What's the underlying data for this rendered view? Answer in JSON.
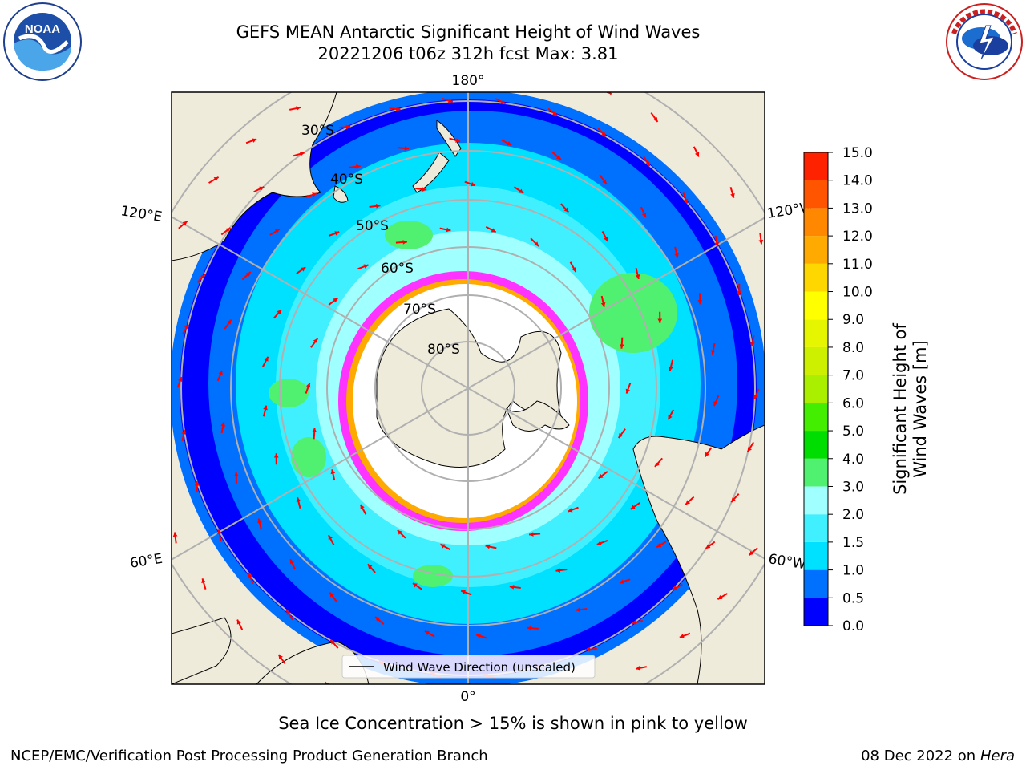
{
  "header": {
    "title_line1": "GEFS MEAN Antarctic Significant Height of Wind Waves",
    "title_line2": "20221206 t06z 312h fcst   Max: 3.81"
  },
  "map": {
    "projection": "south polar stereographic",
    "longitude_labels": {
      "top": "180°",
      "bottom": "0°",
      "upper_left": "120°E",
      "upper_right": "120°W",
      "lower_left": "60°E",
      "lower_right": "60°W"
    },
    "latitude_labels": [
      "30°S",
      "40°S",
      "50°S",
      "60°S",
      "70°S",
      "80°S"
    ],
    "legend_label": "Wind Wave Direction (unscaled)",
    "colors": {
      "land": "#efebdb",
      "ice": "#ffffff",
      "arrows": "#ff0000",
      "ice_margin": "#ff33ff"
    }
  },
  "colorbar": {
    "title": "Significant Height of Wind Waves [m]",
    "tick_labels": [
      "0.0",
      "0.5",
      "1.0",
      "1.5",
      "2.0",
      "3.0",
      "4.0",
      "5.0",
      "6.0",
      "7.0",
      "8.0",
      "9.0",
      "10.0",
      "11.0",
      "12.0",
      "13.0",
      "14.0",
      "15.0"
    ],
    "colors": [
      "#0000ff",
      "#0070ff",
      "#00e0ff",
      "#40f0ff",
      "#a0ffff",
      "#50f070",
      "#00dd00",
      "#44ee00",
      "#aaee00",
      "#ccf000",
      "#e6f500",
      "#ffff00",
      "#ffd700",
      "#ffaa00",
      "#ff8800",
      "#ff5500",
      "#ff2200"
    ]
  },
  "footer": {
    "note": "Sea Ice Concentration > 15% is shown in pink to yellow",
    "left": "NCEP/EMC/Verification Post Processing Product Generation Branch",
    "right_prefix": "08 Dec 2022 on",
    "right_system": "Hera"
  }
}
